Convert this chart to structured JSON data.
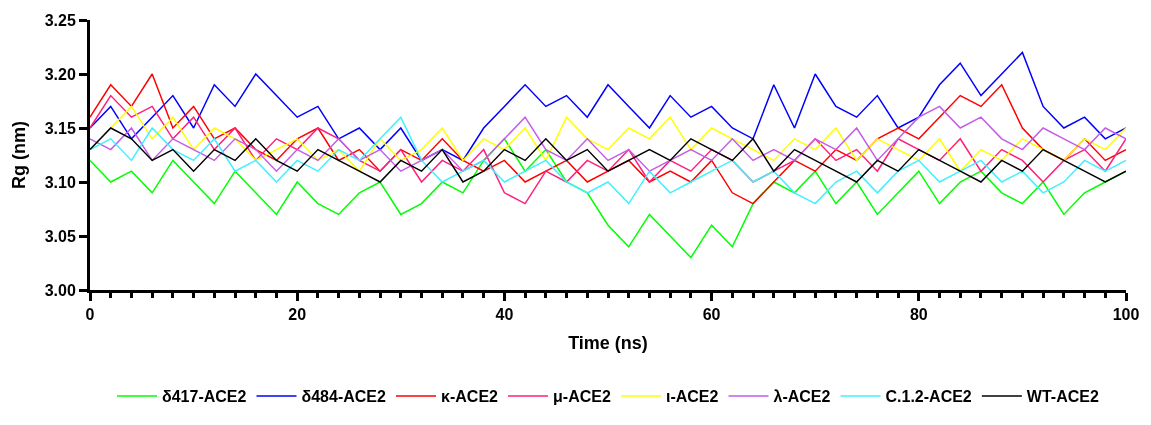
{
  "chart_data": {
    "type": "line",
    "xlabel": "Time (ns)",
    "ylabel": "Rg (nm)",
    "x": [
      0,
      2,
      4,
      6,
      8,
      10,
      12,
      14,
      16,
      18,
      20,
      22,
      24,
      26,
      28,
      30,
      32,
      34,
      36,
      38,
      40,
      42,
      44,
      46,
      48,
      50,
      52,
      54,
      56,
      58,
      60,
      62,
      64,
      66,
      68,
      70,
      72,
      74,
      76,
      78,
      80,
      82,
      84,
      86,
      88,
      90,
      92,
      94,
      96,
      98,
      100
    ],
    "xlim": [
      0,
      100
    ],
    "xticks": [
      0,
      {
        "value": 2,
        "label": null
      },
      {
        "value": 4,
        "label": null
      },
      {
        "value": 6,
        "label": null
      },
      {
        "value": 8,
        "label": null
      },
      {
        "value": 10,
        "label": null
      },
      {
        "value": 12,
        "label": null
      },
      {
        "value": 14,
        "label": null
      },
      {
        "value": 16,
        "label": null
      },
      {
        "value": 18,
        "label": null
      },
      20,
      {
        "value": 22,
        "label": null
      },
      {
        "value": 24,
        "label": null
      },
      {
        "value": 26,
        "label": null
      },
      {
        "value": 28,
        "label": null
      },
      {
        "value": 30,
        "label": null
      },
      {
        "value": 32,
        "label": null
      },
      {
        "value": 34,
        "label": null
      },
      {
        "value": 36,
        "label": null
      },
      {
        "value": 38,
        "label": null
      },
      40,
      {
        "value": 42,
        "label": null
      },
      {
        "value": 44,
        "label": null
      },
      {
        "value": 46,
        "label": null
      },
      {
        "value": 48,
        "label": null
      },
      {
        "value": 50,
        "label": null
      },
      {
        "value": 52,
        "label": null
      },
      {
        "value": 54,
        "label": null
      },
      {
        "value": 56,
        "label": null
      },
      {
        "value": 58,
        "label": null
      },
      60,
      {
        "value": 62,
        "label": null
      },
      {
        "value": 64,
        "label": null
      },
      {
        "value": 66,
        "label": null
      },
      {
        "value": 68,
        "label": null
      },
      {
        "value": 70,
        "label": null
      },
      {
        "value": 72,
        "label": null
      },
      {
        "value": 74,
        "label": null
      },
      {
        "value": 76,
        "label": null
      },
      {
        "value": 78,
        "label": null
      },
      80,
      {
        "value": 82,
        "label": null
      },
      {
        "value": 84,
        "label": null
      },
      {
        "value": 86,
        "label": null
      },
      {
        "value": 88,
        "label": null
      },
      {
        "value": 90,
        "label": null
      },
      {
        "value": 92,
        "label": null
      },
      {
        "value": 94,
        "label": null
      },
      {
        "value": 96,
        "label": null
      },
      {
        "value": 98,
        "label": null
      },
      100
    ],
    "ylim": [
      3.0,
      3.25
    ],
    "yticks": [
      {
        "value": 3.0,
        "label": "3.00"
      },
      {
        "value": 3.05,
        "label": "3.05"
      },
      {
        "value": 3.1,
        "label": "3.10"
      },
      {
        "value": 3.15,
        "label": "3.15"
      },
      {
        "value": 3.2,
        "label": "3.20"
      },
      {
        "value": 3.25,
        "label": "3.25"
      }
    ],
    "legend": "bottom",
    "marker": "none",
    "line_style": "solid",
    "series": [
      {
        "name": "δ417-ACE2",
        "color": "#00ff00",
        "values": [
          3.12,
          3.1,
          3.11,
          3.09,
          3.12,
          3.1,
          3.08,
          3.11,
          3.09,
          3.07,
          3.1,
          3.08,
          3.07,
          3.09,
          3.1,
          3.07,
          3.08,
          3.1,
          3.09,
          3.12,
          3.14,
          3.11,
          3.13,
          3.1,
          3.09,
          3.06,
          3.04,
          3.07,
          3.05,
          3.03,
          3.06,
          3.04,
          3.08,
          3.1,
          3.09,
          3.11,
          3.08,
          3.1,
          3.07,
          3.09,
          3.11,
          3.08,
          3.1,
          3.11,
          3.09,
          3.08,
          3.1,
          3.07,
          3.09,
          3.1,
          3.11
        ]
      },
      {
        "name": "δ484-ACE2",
        "color": "#0000ff",
        "values": [
          3.15,
          3.17,
          3.14,
          3.16,
          3.18,
          3.15,
          3.19,
          3.17,
          3.2,
          3.18,
          3.16,
          3.17,
          3.14,
          3.15,
          3.13,
          3.15,
          3.12,
          3.13,
          3.12,
          3.15,
          3.17,
          3.19,
          3.17,
          3.18,
          3.16,
          3.19,
          3.17,
          3.15,
          3.18,
          3.16,
          3.17,
          3.15,
          3.14,
          3.19,
          3.15,
          3.2,
          3.17,
          3.16,
          3.18,
          3.15,
          3.16,
          3.19,
          3.21,
          3.18,
          3.2,
          3.22,
          3.17,
          3.15,
          3.16,
          3.14,
          3.15
        ]
      },
      {
        "name": "κ-ACE2",
        "color": "#ff0000",
        "values": [
          3.16,
          3.19,
          3.17,
          3.2,
          3.15,
          3.17,
          3.14,
          3.15,
          3.13,
          3.12,
          3.14,
          3.15,
          3.12,
          3.13,
          3.11,
          3.13,
          3.12,
          3.14,
          3.12,
          3.11,
          3.12,
          3.1,
          3.11,
          3.12,
          3.1,
          3.11,
          3.12,
          3.1,
          3.11,
          3.1,
          3.12,
          3.09,
          3.08,
          3.1,
          3.12,
          3.11,
          3.13,
          3.12,
          3.14,
          3.15,
          3.14,
          3.16,
          3.18,
          3.17,
          3.19,
          3.15,
          3.13,
          3.12,
          3.14,
          3.12,
          3.13
        ]
      },
      {
        "name": "μ-ACE2",
        "color": "#ff1f7a",
        "values": [
          3.15,
          3.18,
          3.16,
          3.17,
          3.14,
          3.16,
          3.13,
          3.15,
          3.12,
          3.14,
          3.13,
          3.15,
          3.14,
          3.12,
          3.11,
          3.13,
          3.1,
          3.12,
          3.11,
          3.13,
          3.09,
          3.08,
          3.11,
          3.1,
          3.12,
          3.11,
          3.13,
          3.1,
          3.12,
          3.11,
          3.13,
          3.12,
          3.1,
          3.11,
          3.12,
          3.14,
          3.12,
          3.13,
          3.11,
          3.14,
          3.13,
          3.12,
          3.14,
          3.11,
          3.13,
          3.12,
          3.1,
          3.12,
          3.13,
          3.11,
          3.14
        ]
      },
      {
        "name": "ι-ACE2",
        "color": "#ffff00",
        "values": [
          3.13,
          3.15,
          3.17,
          3.14,
          3.16,
          3.13,
          3.15,
          3.14,
          3.12,
          3.13,
          3.14,
          3.12,
          3.13,
          3.11,
          3.14,
          3.12,
          3.13,
          3.15,
          3.12,
          3.14,
          3.13,
          3.15,
          3.12,
          3.16,
          3.14,
          3.13,
          3.15,
          3.14,
          3.16,
          3.13,
          3.15,
          3.14,
          3.13,
          3.12,
          3.14,
          3.13,
          3.15,
          3.12,
          3.14,
          3.13,
          3.12,
          3.14,
          3.11,
          3.13,
          3.12,
          3.14,
          3.13,
          3.12,
          3.14,
          3.13,
          3.15
        ]
      },
      {
        "name": "λ-ACE2",
        "color": "#c45ce8",
        "values": [
          3.14,
          3.13,
          3.15,
          3.12,
          3.14,
          3.13,
          3.12,
          3.14,
          3.13,
          3.11,
          3.13,
          3.12,
          3.14,
          3.12,
          3.13,
          3.11,
          3.12,
          3.13,
          3.11,
          3.12,
          3.14,
          3.16,
          3.13,
          3.12,
          3.14,
          3.12,
          3.13,
          3.11,
          3.12,
          3.13,
          3.12,
          3.14,
          3.12,
          3.13,
          3.12,
          3.14,
          3.13,
          3.15,
          3.12,
          3.14,
          3.16,
          3.17,
          3.15,
          3.16,
          3.14,
          3.13,
          3.15,
          3.14,
          3.13,
          3.15,
          3.14
        ]
      },
      {
        "name": "C.1.2-ACE2",
        "color": "#40f0ff",
        "values": [
          3.13,
          3.14,
          3.12,
          3.15,
          3.13,
          3.12,
          3.14,
          3.11,
          3.12,
          3.1,
          3.12,
          3.11,
          3.13,
          3.12,
          3.14,
          3.16,
          3.12,
          3.1,
          3.11,
          3.12,
          3.1,
          3.11,
          3.12,
          3.1,
          3.09,
          3.1,
          3.08,
          3.11,
          3.09,
          3.1,
          3.11,
          3.12,
          3.1,
          3.11,
          3.09,
          3.08,
          3.1,
          3.11,
          3.09,
          3.11,
          3.12,
          3.1,
          3.11,
          3.12,
          3.1,
          3.11,
          3.09,
          3.1,
          3.12,
          3.11,
          3.12
        ]
      },
      {
        "name": "WT-ACE2",
        "color": "#000000",
        "values": [
          3.13,
          3.15,
          3.14,
          3.12,
          3.13,
          3.11,
          3.13,
          3.12,
          3.14,
          3.12,
          3.11,
          3.13,
          3.12,
          3.11,
          3.1,
          3.12,
          3.11,
          3.13,
          3.1,
          3.11,
          3.13,
          3.12,
          3.14,
          3.12,
          3.13,
          3.11,
          3.12,
          3.13,
          3.12,
          3.14,
          3.13,
          3.12,
          3.14,
          3.11,
          3.13,
          3.12,
          3.11,
          3.1,
          3.12,
          3.11,
          3.13,
          3.12,
          3.11,
          3.1,
          3.12,
          3.11,
          3.13,
          3.12,
          3.11,
          3.1,
          3.11
        ]
      }
    ]
  }
}
